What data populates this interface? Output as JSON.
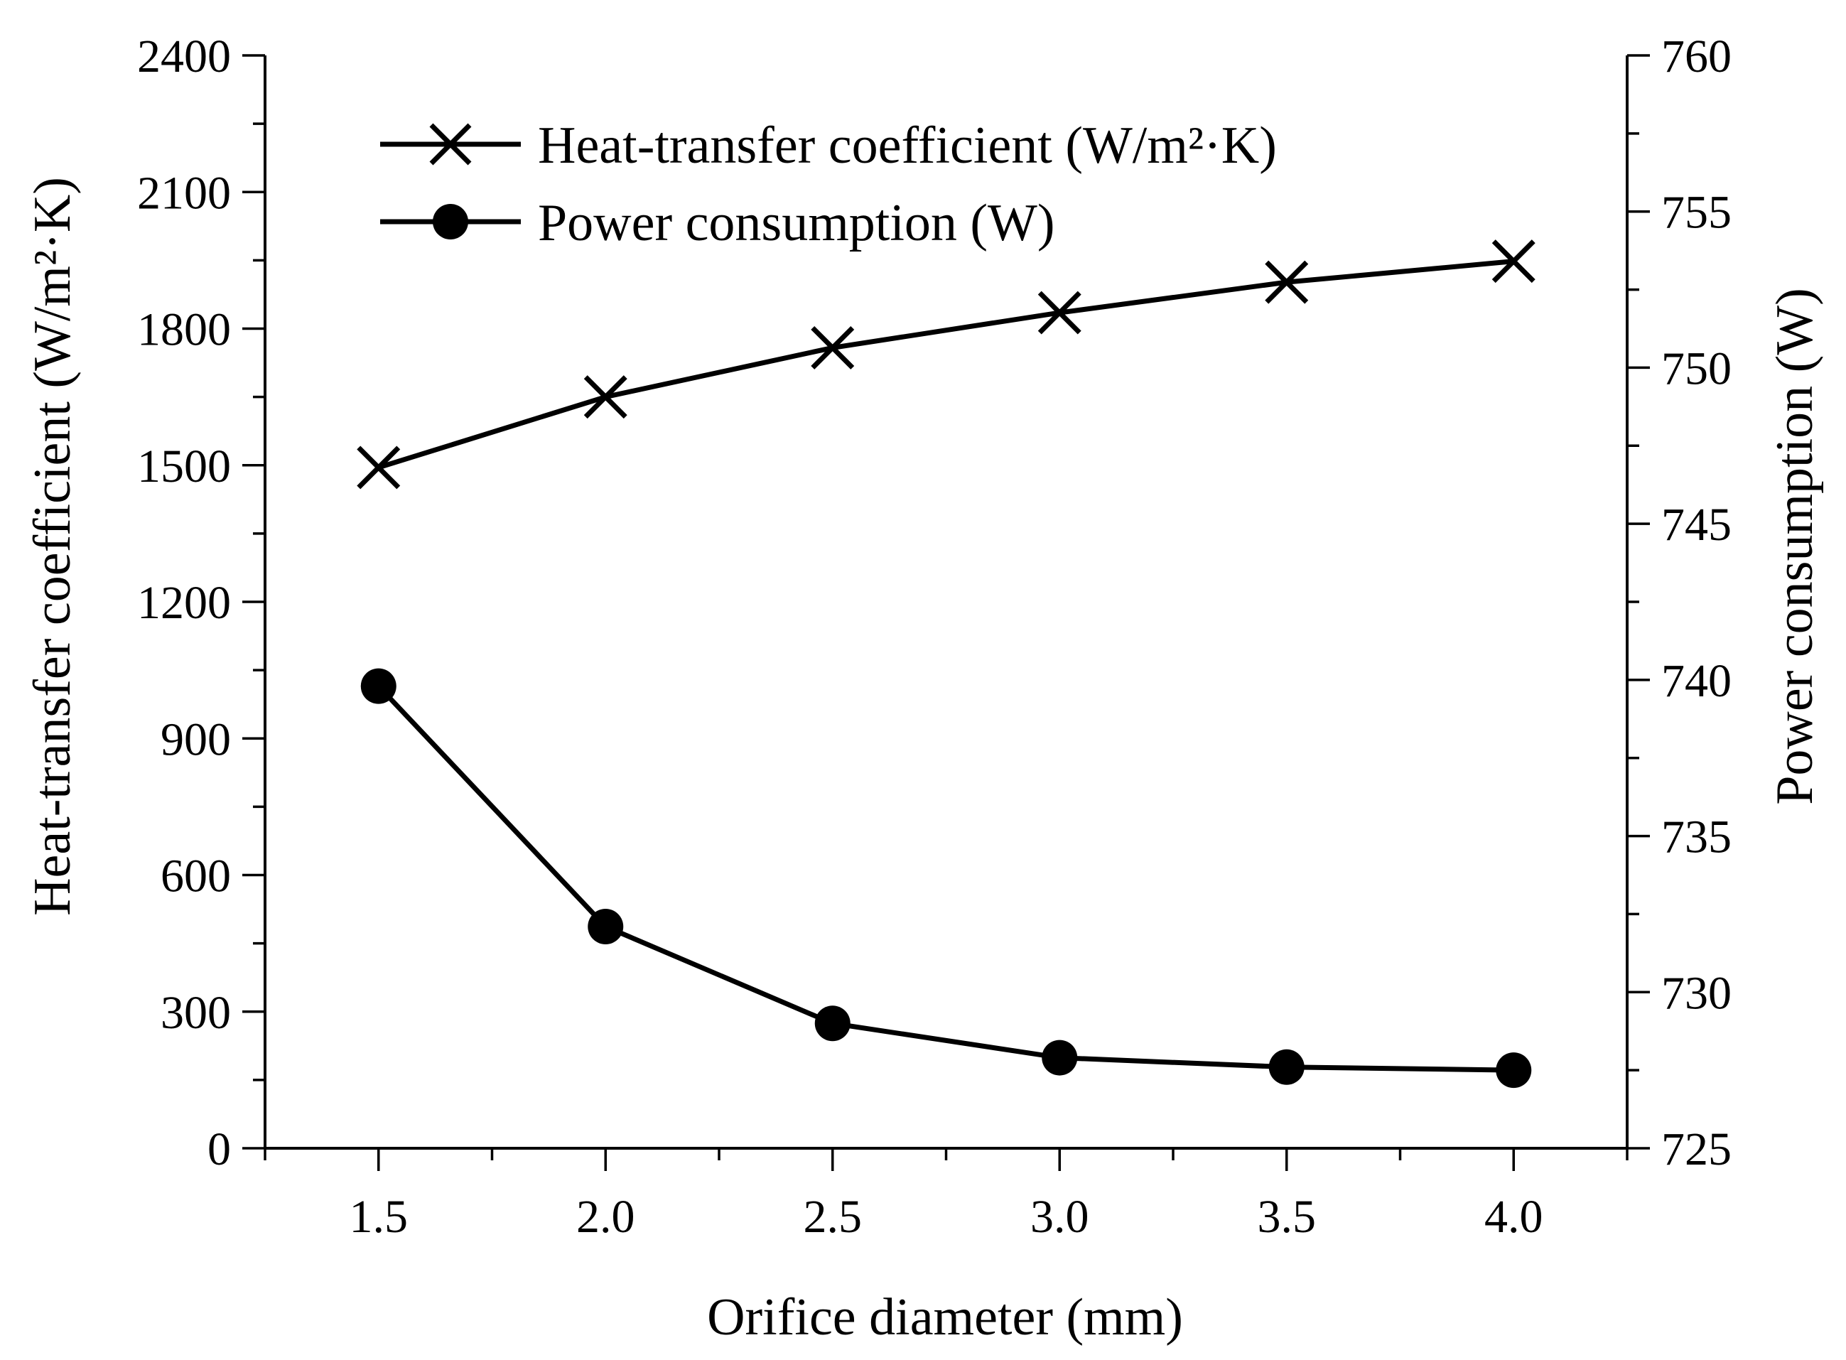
{
  "chart_data": {
    "type": "line",
    "x": [
      1.5,
      2.0,
      2.5,
      3.0,
      3.5,
      4.0
    ],
    "x_tick_labels": [
      "1.5",
      "2.0",
      "2.5",
      "3.0",
      "3.5",
      "4.0"
    ],
    "xlabel": "Orifice diameter (mm)",
    "xlim": [
      1.25,
      4.25
    ],
    "ylabel_left": "Heat-transfer coefficient (W/m²·K)",
    "ylim_left": [
      0,
      2400
    ],
    "y_ticks_left": [
      "0",
      "300",
      "600",
      "900",
      "1200",
      "1500",
      "1800",
      "2100",
      "2400"
    ],
    "ylabel_right": "Power consumption (W)",
    "ylim_right": [
      725,
      760
    ],
    "y_ticks_right": [
      "725",
      "730",
      "735",
      "740",
      "745",
      "750",
      "755",
      "760"
    ],
    "legend_position": "top-left",
    "series": [
      {
        "name": "Heat-transfer coefficient (W/m²·K)",
        "axis": "left",
        "marker": "x",
        "values": [
          1495,
          1650,
          1758,
          1835,
          1902,
          1948
        ]
      },
      {
        "name": "Power consumption (W)",
        "axis": "right",
        "marker": "circle",
        "values": [
          739.8,
          732.1,
          729.0,
          727.9,
          727.6,
          727.5
        ]
      }
    ],
    "colors": {
      "line": "#000000",
      "background": "#ffffff"
    }
  }
}
